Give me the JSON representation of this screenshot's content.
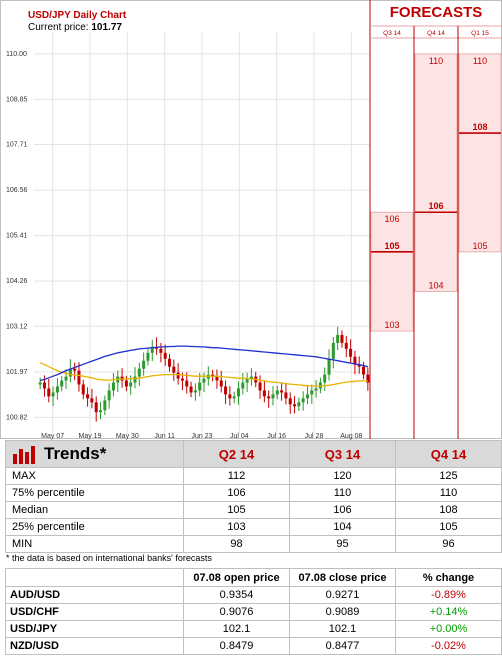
{
  "chart": {
    "title": "USD/JPY Daily Chart",
    "current_label": "Current price:",
    "current_value": "101.77"
  },
  "forecasts": {
    "title": "FORECASTS",
    "columns": [
      "Q3 14",
      "Q4 14",
      "Q1 15"
    ]
  },
  "chart_data": [
    {
      "type": "candlestick",
      "ylim": [
        100.4,
        110.4
      ],
      "yticks": [
        110.0,
        108.85,
        107.71,
        106.56,
        105.41,
        104.26,
        103.12,
        101.97,
        100.82
      ],
      "ytick_labels": [
        "110.00",
        "108.85",
        "107.71",
        "106.56",
        "105.41",
        "104.26",
        "103.12",
        "101.97",
        "100.82"
      ],
      "xtick_labels": [
        "May 07",
        "May 19",
        "May 30",
        "Jun 11",
        "Jun 23",
        "Jul 04",
        "Jul 16",
        "Jul 28",
        "Aug 08"
      ],
      "grid": true,
      "close": [
        101.7,
        101.55,
        101.35,
        101.45,
        101.6,
        101.75,
        101.85,
        102.05,
        102.0,
        101.65,
        101.4,
        101.3,
        101.2,
        100.95,
        101.0,
        101.25,
        101.5,
        101.7,
        101.85,
        101.75,
        101.6,
        101.7,
        101.85,
        102.05,
        102.25,
        102.45,
        102.6,
        102.55,
        102.45,
        102.3,
        102.1,
        101.95,
        101.8,
        101.75,
        101.6,
        101.45,
        101.5,
        101.7,
        101.8,
        101.9,
        101.85,
        101.75,
        101.6,
        101.4,
        101.3,
        101.35,
        101.55,
        101.7,
        101.8,
        101.85,
        101.7,
        101.5,
        101.35,
        101.3,
        101.4,
        101.5,
        101.45,
        101.3,
        101.15,
        101.1,
        101.2,
        101.3,
        101.4,
        101.5,
        101.55,
        101.7,
        101.9,
        102.3,
        102.7,
        102.9,
        102.7,
        102.55,
        102.35,
        102.15,
        102.1,
        101.9,
        101.7
      ],
      "ma_yellow": [
        102.2,
        102.15,
        102.1,
        102.05,
        102.0,
        101.96,
        101.93,
        101.9,
        101.89,
        101.88,
        101.86,
        101.84,
        101.82,
        101.79,
        101.77,
        101.76,
        101.76,
        101.77,
        101.78,
        101.79,
        101.79,
        101.8,
        101.8,
        101.81,
        101.83,
        101.85,
        101.87,
        101.88,
        101.89,
        101.9,
        101.9,
        101.9,
        101.9,
        101.89,
        101.88,
        101.87,
        101.86,
        101.86,
        101.86,
        101.86,
        101.86,
        101.86,
        101.85,
        101.84,
        101.83,
        101.82,
        101.81,
        101.81,
        101.8,
        101.79,
        101.78,
        101.76,
        101.74,
        101.72,
        101.71,
        101.7,
        101.69,
        101.67,
        101.66,
        101.65,
        101.64,
        101.63,
        101.62,
        101.61,
        101.61,
        101.61,
        101.62,
        101.63,
        101.65,
        101.67,
        101.69,
        101.71,
        101.72,
        101.73,
        101.74,
        101.74,
        101.74
      ],
      "ma_blue": [
        101.75,
        101.78,
        101.82,
        101.86,
        101.9,
        101.95,
        102.0,
        102.04,
        102.08,
        102.12,
        102.16,
        102.2,
        102.24,
        102.28,
        102.32,
        102.36,
        102.39,
        102.42,
        102.45,
        102.47,
        102.49,
        102.51,
        102.53,
        102.55,
        102.56,
        102.57,
        102.58,
        102.59,
        102.6,
        102.6,
        102.61,
        102.61,
        102.62,
        102.62,
        102.62,
        102.61,
        102.61,
        102.6,
        102.6,
        102.59,
        102.58,
        102.58,
        102.57,
        102.56,
        102.55,
        102.54,
        102.53,
        102.52,
        102.51,
        102.5,
        102.49,
        102.48,
        102.47,
        102.46,
        102.45,
        102.44,
        102.43,
        102.42,
        102.41,
        102.4,
        102.39,
        102.38,
        102.37,
        102.36,
        102.35,
        102.33,
        102.31,
        102.29,
        102.27,
        102.25,
        102.23,
        102.21,
        102.19,
        102.17,
        102.15,
        102.13,
        102.1
      ]
    },
    {
      "type": "forecast-ranges",
      "columns": [
        "Q3 14",
        "Q4 14",
        "Q1 15"
      ],
      "max": [
        106,
        110,
        110
      ],
      "median": [
        105,
        106,
        108
      ],
      "min": [
        103,
        104,
        105
      ]
    }
  ],
  "trends": {
    "title": "Trends*",
    "columns": [
      "Q2 14",
      "Q3 14",
      "Q4 14"
    ],
    "rows": [
      {
        "label": "MAX",
        "values": [
          "112",
          "120",
          "125"
        ]
      },
      {
        "label": "75% percentile",
        "values": [
          "106",
          "110",
          "110"
        ]
      },
      {
        "label": "Median",
        "values": [
          "105",
          "106",
          "108"
        ]
      },
      {
        "label": "25% percentile",
        "values": [
          "103",
          "104",
          "105"
        ]
      },
      {
        "label": "MIN",
        "values": [
          "98",
          "95",
          "96"
        ]
      }
    ],
    "note": "* the data is based on international banks' forecasts"
  },
  "prices": {
    "headers": [
      "",
      "07.08 open price",
      "07.08 close price",
      "% change"
    ],
    "rows": [
      {
        "pair": "AUD/USD",
        "open": "0.9354",
        "close": "0.9271",
        "change": "-0.89%",
        "dir": "neg"
      },
      {
        "pair": "USD/CHF",
        "open": "0.9076",
        "close": "0.9089",
        "change": "+0.14%",
        "dir": "pos"
      },
      {
        "pair": "USD/JPY",
        "open": "102.1",
        "close": "102.1",
        "change": "+0.00%",
        "dir": "pos"
      },
      {
        "pair": "NZD/USD",
        "open": "0.8479",
        "close": "0.8477",
        "change": "-0.02%",
        "dir": "neg"
      }
    ]
  },
  "colors": {
    "accent": "#c00000",
    "bull": "#2e9a2e",
    "bear": "#c00000",
    "ma_blue": "#1f2fcf",
    "ma_yellow": "#e8b400",
    "forecast_fill": "#fde4e4",
    "header_gray": "#d9d9d9"
  }
}
